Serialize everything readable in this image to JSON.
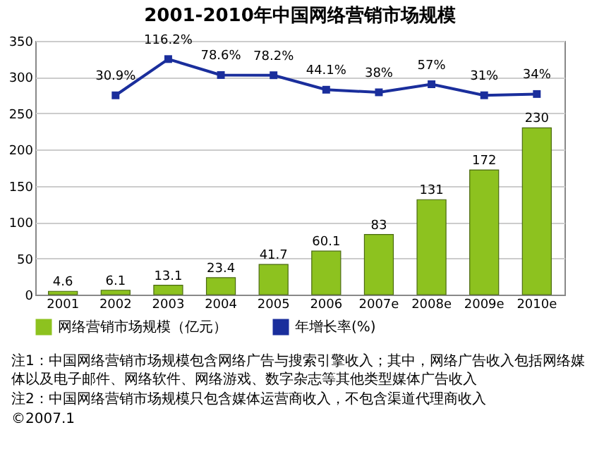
{
  "chart_data": {
    "type": "bar",
    "title": "2001-2010年中国网络营销市场规模",
    "categories": [
      "2001",
      "2002",
      "2003",
      "2004",
      "2005",
      "2006",
      "2007e",
      "2008e",
      "2009e",
      "2010e"
    ],
    "series": [
      {
        "name": "网络营销市场规模（亿元）",
        "color": "#8dc21f",
        "values": [
          4.6,
          6.1,
          13.1,
          23.4,
          41.7,
          60.1,
          83,
          131,
          172,
          230
        ]
      },
      {
        "name": "年增长率(%)",
        "type": "line",
        "axis": "y2",
        "color": "#1a2e9c",
        "marker": "square",
        "values": [
          null,
          30.9,
          116.2,
          78.6,
          78.2,
          44.1,
          38,
          57,
          31,
          34
        ],
        "value_labels": [
          null,
          "30.9%",
          "116.2%",
          "78.6%",
          "78.2%",
          "44.1%",
          "38%",
          "57%",
          "31%",
          "34%"
        ]
      }
    ],
    "data_labels": true,
    "ylim": [
      0,
      350
    ],
    "yticks": [
      0,
      50,
      100,
      150,
      200,
      250,
      300,
      350
    ],
    "y2lim": [
      -438,
      159
    ],
    "grid": "y",
    "legend": "bottom",
    "annotations": [
      "注1：中国网络营销市场规模包含网络广告与搜索引擎收入；其中，网络广告收入包括网络媒体以及电子邮件、网络软件、网络游戏、数字杂志等其他类型媒体广告收入",
      "注2：中国网络营销市场规模只包含媒体运营商收入，不包含渠道代理商收入",
      "©2007.1"
    ]
  }
}
